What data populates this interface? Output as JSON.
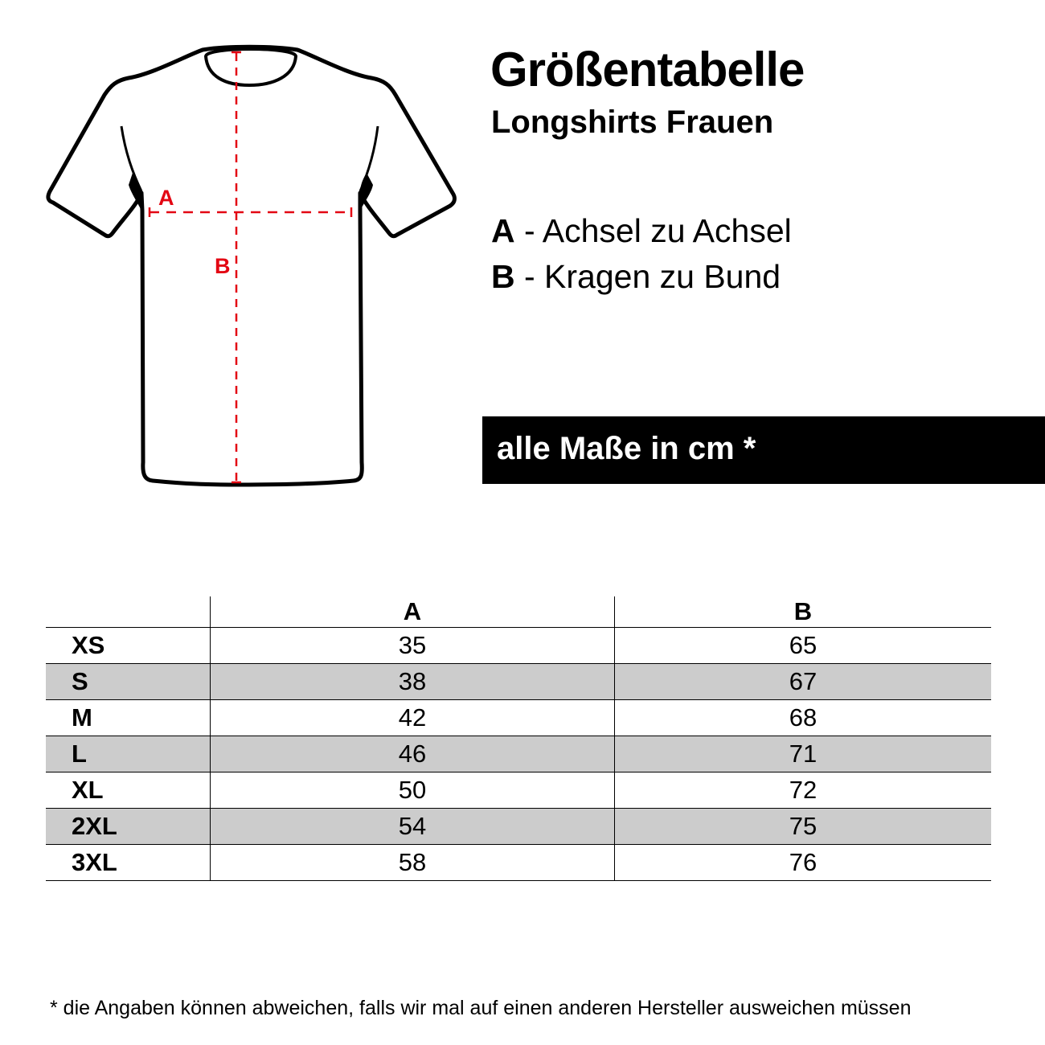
{
  "header": {
    "title": "Größentabelle",
    "subtitle": "Longshirts Frauen"
  },
  "legend": [
    {
      "key": "A",
      "text": " - Achsel zu Achsel"
    },
    {
      "key": "B",
      "text": " - Kragen zu Bund"
    }
  ],
  "diagram": {
    "label_a": "A",
    "label_b": "B",
    "measure_color": "#e30613"
  },
  "units_banner": "alle Maße in cm *",
  "table": {
    "columns": [
      "",
      "A",
      "B"
    ],
    "rows": [
      {
        "size": "XS",
        "a": "35",
        "b": "65"
      },
      {
        "size": "S",
        "a": "38",
        "b": "67"
      },
      {
        "size": "M",
        "a": "42",
        "b": "68"
      },
      {
        "size": "L",
        "a": "46",
        "b": "71"
      },
      {
        "size": "XL",
        "a": "50",
        "b": "72"
      },
      {
        "size": "2XL",
        "a": "54",
        "b": "75"
      },
      {
        "size": "3XL",
        "a": "58",
        "b": "76"
      }
    ],
    "alt_row_color": "#cccccc"
  },
  "footnote": "* die Angaben können abweichen, falls wir mal auf einen anderen Hersteller ausweichen müssen"
}
